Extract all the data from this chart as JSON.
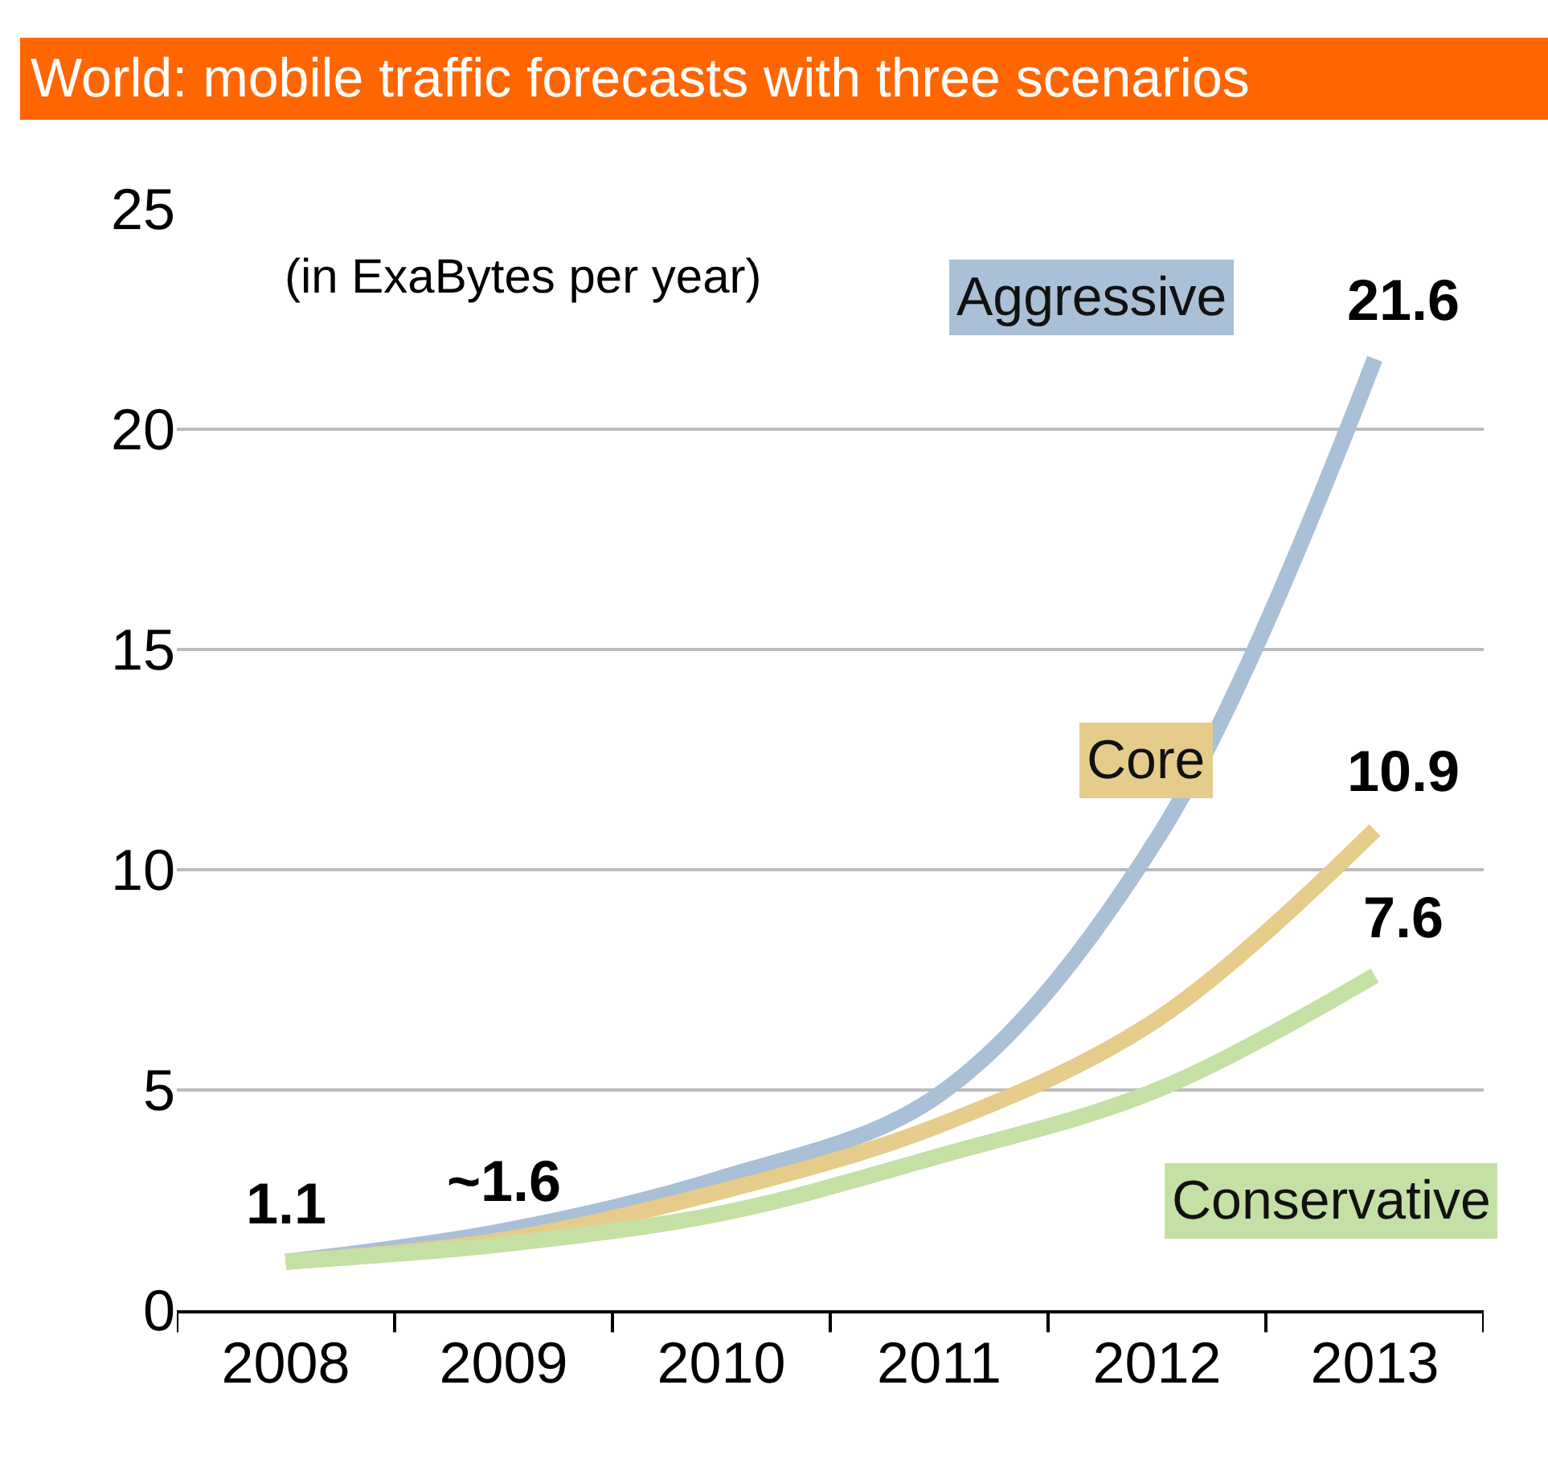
{
  "chart_data": {
    "type": "line",
    "title": "World: mobile traffic forecasts with three scenarios",
    "subtitle": "(in ExaBytes per year)",
    "categories": [
      "2008",
      "2009",
      "2010",
      "2011",
      "2012",
      "2013"
    ],
    "series": [
      {
        "name": "Aggressive",
        "color": "#a9c0d6",
        "values": [
          1.1,
          1.8,
          3.0,
          4.9,
          10.7,
          21.6
        ]
      },
      {
        "name": "Core",
        "color": "#e6cc8a",
        "values": [
          1.1,
          1.6,
          2.7,
          4.2,
          6.6,
          10.9
        ]
      },
      {
        "name": "Conservative",
        "color": "#c5e0a5",
        "values": [
          1.1,
          1.5,
          2.2,
          3.5,
          5.0,
          7.6
        ]
      }
    ],
    "annotations": [
      {
        "text": "1.1",
        "x": "2008",
        "y": 1.1
      },
      {
        "text": "~1.6",
        "x": "2009",
        "y": 1.6
      },
      {
        "text": "21.6",
        "x": "2013",
        "y": 21.6
      },
      {
        "text": "10.9",
        "x": "2013",
        "y": 10.9
      },
      {
        "text": "7.6",
        "x": "2013",
        "y": 7.6
      }
    ],
    "ylim": [
      0,
      25
    ],
    "yticks": [
      0,
      5,
      10,
      15,
      20,
      25
    ],
    "grid": "y",
    "legend": false,
    "marker": "none",
    "line_style": "solid"
  }
}
